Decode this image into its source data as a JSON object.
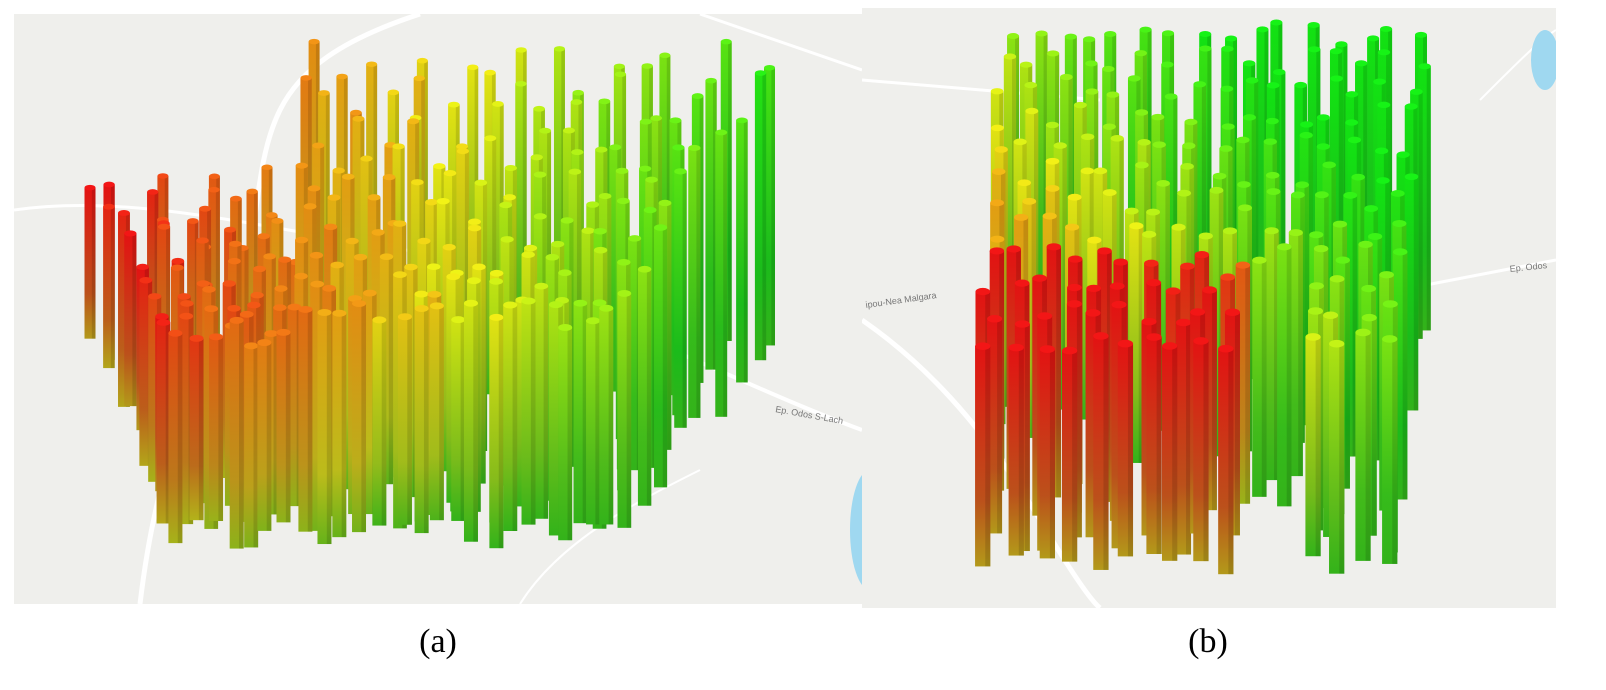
{
  "panels": [
    {
      "caption": "(a)",
      "map_labels": [
        "Ep. Odos S-Lach"
      ]
    },
    {
      "caption": "(b)",
      "map_labels": [
        "ipou-Nea Malgara",
        "Ep. Odos"
      ]
    }
  ]
}
